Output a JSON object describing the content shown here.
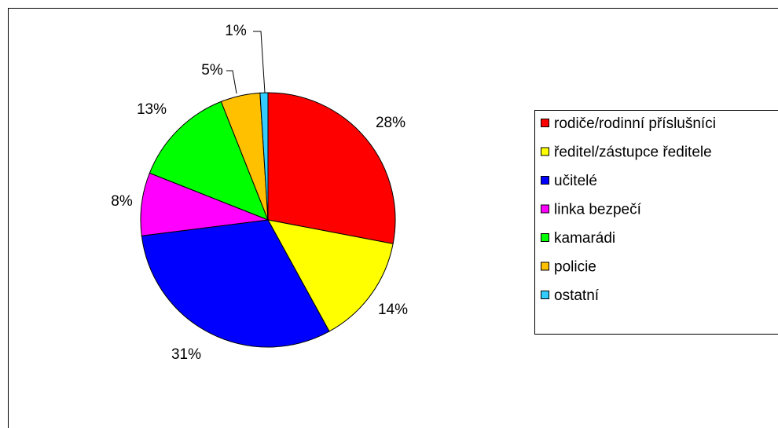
{
  "chart_data": {
    "type": "pie",
    "categories": [
      "rodiče/rodinní příslušníci",
      "ředitel/zástupce ředitele",
      "učitelé",
      "linka bezpečí",
      "kamarádi",
      "policie",
      "ostatní"
    ],
    "values": [
      28,
      14,
      31,
      8,
      13,
      5,
      1
    ],
    "value_labels": [
      "28%",
      "14%",
      "31%",
      "8%",
      "13%",
      "5%",
      "1%"
    ],
    "colors": [
      "#ff0000",
      "#ffff00",
      "#0000ff",
      "#ff00ff",
      "#00ff00",
      "#ffc000",
      "#33ccff"
    ],
    "legend": "right"
  }
}
